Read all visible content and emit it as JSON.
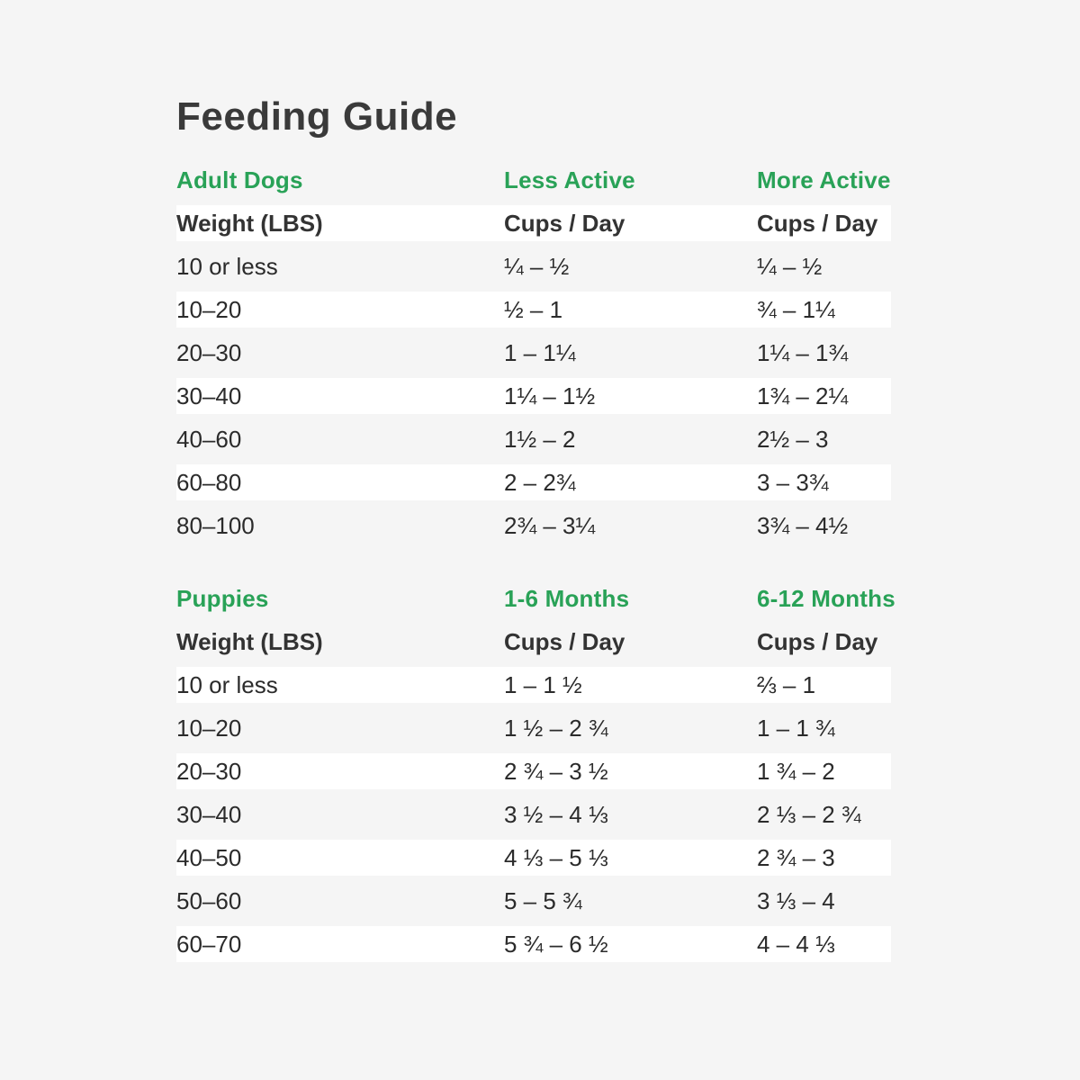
{
  "title": "Feeding Guide",
  "colors": {
    "green": "#29a257",
    "background": "#f5f5f5",
    "stripe": "#ffffff",
    "title_text": "#3a3a3a",
    "body_text": "#2b2b2b",
    "header_text": "#333333"
  },
  "chart_data": [
    {
      "type": "table",
      "section_label": "Adult Dogs",
      "col2_label": "Less Active",
      "col3_label": "More Active",
      "columns": {
        "col1": "Weight (LBS)",
        "col2": "Cups / Day",
        "col3": "Cups / Day"
      },
      "rows": [
        {
          "weight": "10 or less",
          "col2": "¼ – ½",
          "col3": "¼ – ½"
        },
        {
          "weight": "10–20",
          "col2": "½ – 1",
          "col3": "¾ – 1¼"
        },
        {
          "weight": "20–30",
          "col2": "1 – 1¼",
          "col3": "1¼ – 1¾"
        },
        {
          "weight": "30–40",
          "col2": "1¼ – 1½",
          "col3": "1¾ – 2¼"
        },
        {
          "weight": "40–60",
          "col2": "1½ – 2",
          "col3": "2½ – 3"
        },
        {
          "weight": "60–80",
          "col2": "2 – 2¾",
          "col3": "3 – 3¾"
        },
        {
          "weight": "80–100",
          "col2": "2¾ – 3¼",
          "col3": "3¾ – 4½"
        }
      ]
    },
    {
      "type": "table",
      "section_label": "Puppies",
      "col2_label": "1-6 Months",
      "col3_label": "6-12 Months",
      "columns": {
        "col1": "Weight (LBS)",
        "col2": "Cups / Day",
        "col3": "Cups / Day"
      },
      "rows": [
        {
          "weight": "10 or less",
          "col2": "1 – 1 ½",
          "col3": "⅔ – 1"
        },
        {
          "weight": "10–20",
          "col2": "1 ½ – 2 ¾",
          "col3": "1 – 1 ¾"
        },
        {
          "weight": "20–30",
          "col2": "2 ¾ – 3 ½",
          "col3": "1 ¾ – 2"
        },
        {
          "weight": "30–40",
          "col2": "3 ½ – 4 ⅓",
          "col3": "2 ⅓ – 2 ¾"
        },
        {
          "weight": "40–50",
          "col2": "4 ⅓ – 5 ⅓",
          "col3": "2 ¾ – 3"
        },
        {
          "weight": "50–60",
          "col2": "5 – 5 ¾",
          "col3": "3 ⅓ – 4"
        },
        {
          "weight": "60–70",
          "col2": "5 ¾ – 6 ½",
          "col3": "4 – 4 ⅓"
        }
      ]
    }
  ]
}
